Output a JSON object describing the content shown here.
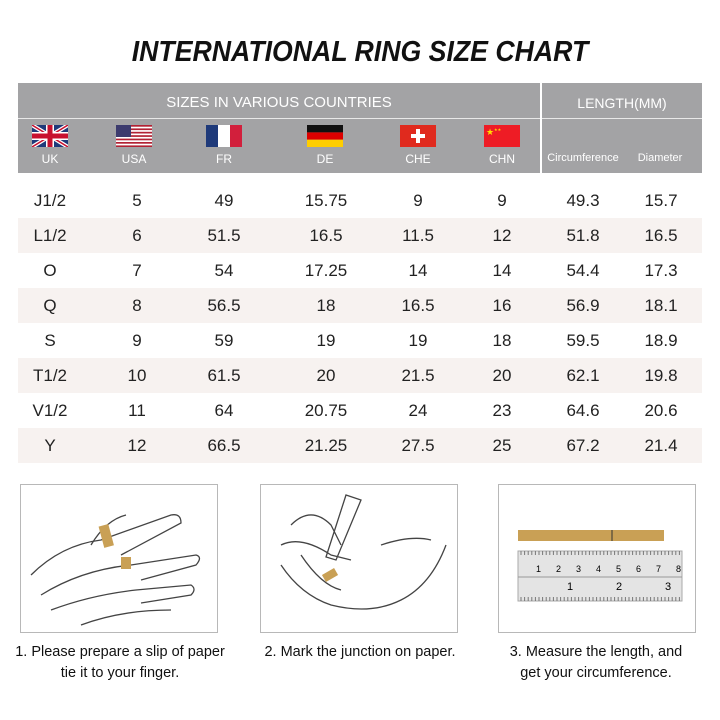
{
  "title": "INTERNATIONAL RING SIZE CHART",
  "header": {
    "sizes_label": "SIZES IN VARIOUS COUNTRIES",
    "length_label": "LENGTH(MM)",
    "countries": [
      {
        "code": "UK",
        "flag": "uk-flag"
      },
      {
        "code": "USA",
        "flag": "usa-flag"
      },
      {
        "code": "FR",
        "flag": "france-flag"
      },
      {
        "code": "DE",
        "flag": "germany-flag"
      },
      {
        "code": "CHE",
        "flag": "switzerland-flag"
      },
      {
        "code": "CHN",
        "flag": "china-flag"
      }
    ],
    "length_cols": [
      "Circumference",
      "Diameter"
    ]
  },
  "rows": [
    [
      "J1/2",
      "5",
      "49",
      "15.75",
      "9",
      "9",
      "49.3",
      "15.7"
    ],
    [
      "L1/2",
      "6",
      "51.5",
      "16.5",
      "11.5",
      "12",
      "51.8",
      "16.5"
    ],
    [
      "O",
      "7",
      "54",
      "17.25",
      "14",
      "14",
      "54.4",
      "17.3"
    ],
    [
      "Q",
      "8",
      "56.5",
      "18",
      "16.5",
      "16",
      "56.9",
      "18.1"
    ],
    [
      "S",
      "9",
      "59",
      "19",
      "19",
      "18",
      "59.5",
      "18.9"
    ],
    [
      "T1/2",
      "10",
      "61.5",
      "20",
      "21.5",
      "20",
      "62.1",
      "19.8"
    ],
    [
      "V1/2",
      "11",
      "64",
      "20.75",
      "24",
      "23",
      "64.6",
      "20.6"
    ],
    [
      "Y",
      "12",
      "66.5",
      "21.25",
      "27.5",
      "25",
      "67.2",
      "21.4"
    ]
  ],
  "steps": [
    {
      "line1": "1. Please prepare a slip of paper",
      "line2": "tie it to your finger."
    },
    {
      "line1": "2. Mark the junction on paper.",
      "line2": ""
    },
    {
      "line1": "3. Measure the length, and",
      "line2": "get your circumference."
    }
  ],
  "ruler": {
    "mm_ticks": [
      "1",
      "2",
      "3",
      "4",
      "5",
      "6",
      "7",
      "8"
    ],
    "inch_ticks": [
      "1",
      "2",
      "3"
    ]
  },
  "colors": {
    "header_bg": "#a3a3a5",
    "alt_row": "#f7f2f0",
    "paper_strip": "#c9a055"
  }
}
